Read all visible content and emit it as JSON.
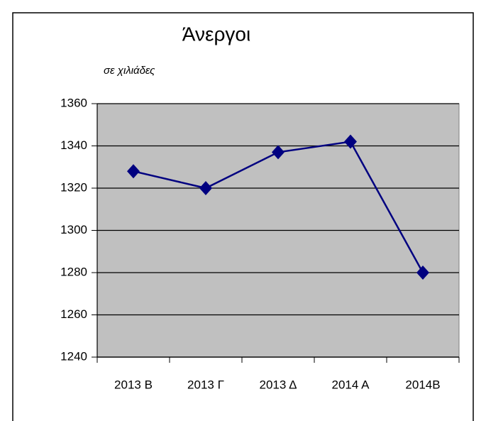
{
  "chart_data": {
    "type": "line",
    "title": "Άνεργοι",
    "subtitle": "σε χιλιάδες",
    "categories": [
      "2013 Β",
      "2013 Γ",
      "2013 Δ",
      "2014 Α",
      "2014Β"
    ],
    "values": [
      1328,
      1320,
      1337,
      1342,
      1280
    ],
    "color": "#000080",
    "ylim": [
      1240,
      1360
    ],
    "yticks": [
      1240,
      1260,
      1280,
      1300,
      1320,
      1340,
      1360
    ],
    "grid": true
  }
}
